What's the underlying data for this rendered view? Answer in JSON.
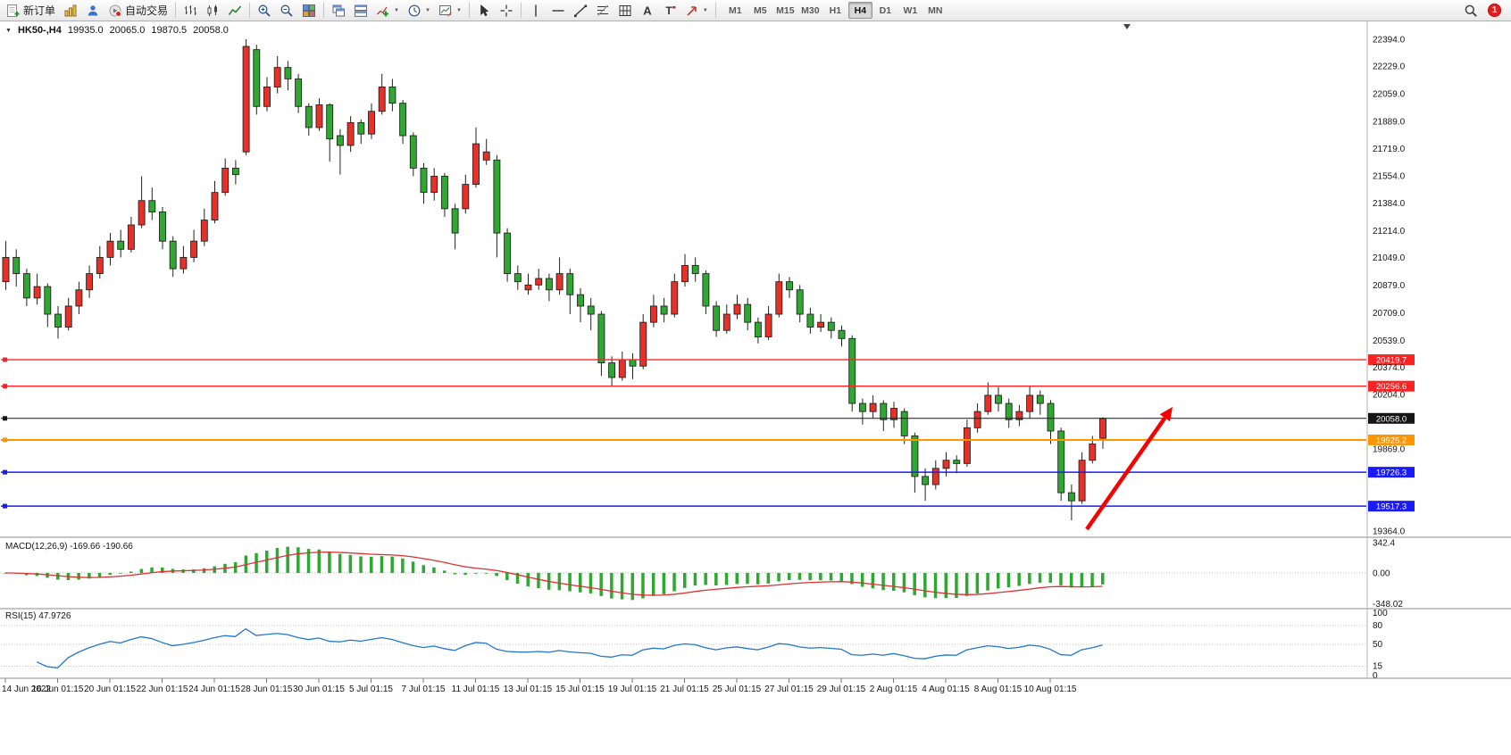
{
  "toolbar": {
    "new_order_label": "新订单",
    "autotrade_label": "自动交易",
    "timeframes": [
      "M1",
      "M5",
      "M15",
      "M30",
      "H1",
      "H4",
      "D1",
      "W1",
      "MN"
    ],
    "active_timeframe": "H4",
    "notification_count": "1"
  },
  "glyphs": {
    "caret_down": "▼"
  },
  "chart_header": {
    "symbol_period": "HK50-,H4",
    "open": "19935.0",
    "high": "20065.0",
    "low": "19870.5",
    "close": "20058.0"
  },
  "colors": {
    "up": "#e63028",
    "down": "#2fa832",
    "wick": "#222222",
    "macd_hist": "#2fa832",
    "macd_signal": "#e03030",
    "rsi": "#1f77d0"
  },
  "price_axis": {
    "labels": [
      "22394.0",
      "22229.0",
      "22059.0",
      "21889.0",
      "21719.0",
      "21554.0",
      "21384.0",
      "21214.0",
      "21049.0",
      "20879.0",
      "20709.0",
      "20539.0",
      "20374.0",
      "20204.0",
      "20034.0",
      "19869.0",
      "19699.0",
      "19534.0",
      "19364.0"
    ]
  },
  "hlines": [
    {
      "price": 20419.7,
      "label": "20419.7",
      "color": "#ff2222",
      "width": 1.4
    },
    {
      "price": 20256.6,
      "label": "20256.6",
      "color": "#ff2222",
      "width": 1.4
    },
    {
      "price": 20058.0,
      "label": "20058.0",
      "color": "#151515",
      "width": 1
    },
    {
      "price": 19925.2,
      "label": "19925.2",
      "color": "#ff9500",
      "width": 2
    },
    {
      "price": 19726.3,
      "label": "19726.3",
      "color": "#1a1aff",
      "width": 1.6
    },
    {
      "price": 19517.3,
      "label": "19517.3",
      "color": "#1a1aff",
      "width": 1.6
    }
  ],
  "time_axis": [
    "14 Jun 2022",
    "16 Jun 01:15",
    "20 Jun 01:15",
    "22 Jun 01:15",
    "24 Jun 01:15",
    "28 Jun 01:15",
    "30 Jun 01:15",
    "5 Jul 01:15",
    "7 Jul 01:15",
    "11 Jul 01:15",
    "13 Jul 01:15",
    "15 Jul 01:15",
    "19 Jul 01:15",
    "21 Jul 01:15",
    "25 Jul 01:15",
    "27 Jul 01:15",
    "29 Jul 01:15",
    "2 Aug 01:15",
    "4 Aug 01:15",
    "8 Aug 01:15",
    "10 Aug 01:15"
  ],
  "chart_data": {
    "type": "candlestick",
    "symbol": "HK50-",
    "timeframe": "H4",
    "title": "HK50-,H4",
    "ylim": [
      19364.0,
      22394.0
    ],
    "candles_format": [
      "open",
      "high",
      "low",
      "close"
    ],
    "candles": [
      [
        20900,
        21150,
        20850,
        21050
      ],
      [
        21050,
        21100,
        20870,
        20950
      ],
      [
        20950,
        20980,
        20750,
        20800
      ],
      [
        20800,
        20950,
        20760,
        20870
      ],
      [
        20870,
        20890,
        20620,
        20700
      ],
      [
        20700,
        20750,
        20550,
        20620
      ],
      [
        20620,
        20800,
        20600,
        20750
      ],
      [
        20750,
        20900,
        20700,
        20850
      ],
      [
        20850,
        21000,
        20800,
        20950
      ],
      [
        20950,
        21120,
        20920,
        21050
      ],
      [
        21050,
        21200,
        21000,
        21150
      ],
      [
        21150,
        21220,
        21050,
        21100
      ],
      [
        21100,
        21300,
        21080,
        21250
      ],
      [
        21250,
        21550,
        21230,
        21400
      ],
      [
        21400,
        21480,
        21280,
        21330
      ],
      [
        21330,
        21360,
        21100,
        21150
      ],
      [
        21150,
        21180,
        20930,
        20980
      ],
      [
        20980,
        21120,
        20950,
        21050
      ],
      [
        21050,
        21220,
        21020,
        21150
      ],
      [
        21150,
        21350,
        21120,
        21280
      ],
      [
        21280,
        21520,
        21260,
        21450
      ],
      [
        21450,
        21660,
        21430,
        21600
      ],
      [
        21600,
        21650,
        21500,
        21560
      ],
      [
        21700,
        22394,
        21680,
        22350
      ],
      [
        22330,
        22360,
        21930,
        21980
      ],
      [
        21980,
        22160,
        21950,
        22100
      ],
      [
        22100,
        22290,
        22060,
        22220
      ],
      [
        22220,
        22260,
        22080,
        22150
      ],
      [
        22150,
        22180,
        21940,
        21980
      ],
      [
        21980,
        22000,
        21800,
        21850
      ],
      [
        21850,
        22030,
        21830,
        21990
      ],
      [
        21990,
        22000,
        21640,
        21780
      ],
      [
        21800,
        21840,
        21560,
        21740
      ],
      [
        21740,
        21920,
        21700,
        21880
      ],
      [
        21880,
        21900,
        21750,
        21810
      ],
      [
        21810,
        22000,
        21780,
        21950
      ],
      [
        21950,
        22180,
        21930,
        22100
      ],
      [
        22100,
        22150,
        21950,
        22000
      ],
      [
        22000,
        22020,
        21750,
        21800
      ],
      [
        21800,
        21820,
        21550,
        21600
      ],
      [
        21600,
        21630,
        21380,
        21450
      ],
      [
        21450,
        21600,
        21400,
        21550
      ],
      [
        21550,
        21570,
        21300,
        21350
      ],
      [
        21350,
        21380,
        21100,
        21200
      ],
      [
        21350,
        21560,
        21320,
        21500
      ],
      [
        21500,
        21850,
        21480,
        21750
      ],
      [
        21650,
        21780,
        21620,
        21700
      ],
      [
        21650,
        21680,
        21050,
        21200
      ],
      [
        21200,
        21230,
        20900,
        20950
      ],
      [
        20950,
        21000,
        20850,
        20900
      ],
      [
        20850,
        20950,
        20820,
        20880
      ],
      [
        20880,
        20980,
        20850,
        20920
      ],
      [
        20920,
        20950,
        20780,
        20850
      ],
      [
        20850,
        21050,
        20820,
        20950
      ],
      [
        20950,
        20980,
        20700,
        20820
      ],
      [
        20820,
        20860,
        20650,
        20750
      ],
      [
        20750,
        20800,
        20600,
        20700
      ],
      [
        20700,
        20720,
        20320,
        20400
      ],
      [
        20400,
        20440,
        20260,
        20310
      ],
      [
        20310,
        20470,
        20290,
        20420
      ],
      [
        20420,
        20460,
        20300,
        20380
      ],
      [
        20380,
        20700,
        20360,
        20650
      ],
      [
        20650,
        20820,
        20620,
        20750
      ],
      [
        20750,
        20800,
        20650,
        20700
      ],
      [
        20700,
        20950,
        20680,
        20900
      ],
      [
        20900,
        21070,
        20870,
        21000
      ],
      [
        21000,
        21050,
        20900,
        20950
      ],
      [
        20950,
        20970,
        20700,
        20750
      ],
      [
        20750,
        20780,
        20560,
        20600
      ],
      [
        20600,
        20760,
        20580,
        20700
      ],
      [
        20700,
        20820,
        20670,
        20760
      ],
      [
        20760,
        20800,
        20600,
        20650
      ],
      [
        20650,
        20680,
        20520,
        20560
      ],
      [
        20560,
        20750,
        20540,
        20700
      ],
      [
        20700,
        20950,
        20680,
        20900
      ],
      [
        20900,
        20930,
        20800,
        20850
      ],
      [
        20850,
        20880,
        20650,
        20700
      ],
      [
        20700,
        20740,
        20580,
        20620
      ],
      [
        20620,
        20700,
        20590,
        20650
      ],
      [
        20650,
        20680,
        20550,
        20600
      ],
      [
        20600,
        20630,
        20500,
        20550
      ],
      [
        20550,
        20570,
        20100,
        20150
      ],
      [
        20150,
        20180,
        20020,
        20100
      ],
      [
        20100,
        20200,
        20060,
        20150
      ],
      [
        20150,
        20170,
        19980,
        20050
      ],
      [
        20050,
        20160,
        20000,
        20120
      ],
      [
        20100,
        20120,
        19900,
        19950
      ],
      [
        19950,
        19970,
        19600,
        19700
      ],
      [
        19700,
        19750,
        19550,
        19650
      ],
      [
        19650,
        19800,
        19620,
        19750
      ],
      [
        19750,
        19850,
        19700,
        19800
      ],
      [
        19800,
        19830,
        19720,
        19780
      ],
      [
        19780,
        20050,
        19760,
        20000
      ],
      [
        20000,
        20150,
        19970,
        20100
      ],
      [
        20100,
        20280,
        20080,
        20200
      ],
      [
        20200,
        20250,
        20100,
        20150
      ],
      [
        20150,
        20180,
        20000,
        20050
      ],
      [
        20050,
        20140,
        20010,
        20100
      ],
      [
        20100,
        20260,
        20060,
        20200
      ],
      [
        20200,
        20230,
        20080,
        20150
      ],
      [
        20150,
        20170,
        19900,
        19980
      ],
      [
        19980,
        20000,
        19550,
        19600
      ],
      [
        19600,
        19650,
        19430,
        19550
      ],
      [
        19550,
        19850,
        19530,
        19800
      ],
      [
        19800,
        19950,
        19780,
        19900
      ],
      [
        19935,
        20065,
        19870.5,
        20058
      ]
    ]
  },
  "macd": {
    "label": "MACD(12,26,9) -169.66 -190.66",
    "params": [
      12,
      26,
      9
    ],
    "value_main": -169.66,
    "value_signal": -190.66,
    "axis": [
      "342.4",
      "0.00",
      "-348.02"
    ],
    "ylim": [
      -348.02,
      342.4
    ]
  },
  "rsi": {
    "label": "RSI(15) 47.9726",
    "period": 15,
    "value": 47.9726,
    "axis": [
      "100",
      "80",
      "50",
      "15",
      "0"
    ],
    "levels": [
      80,
      50,
      15
    ]
  }
}
